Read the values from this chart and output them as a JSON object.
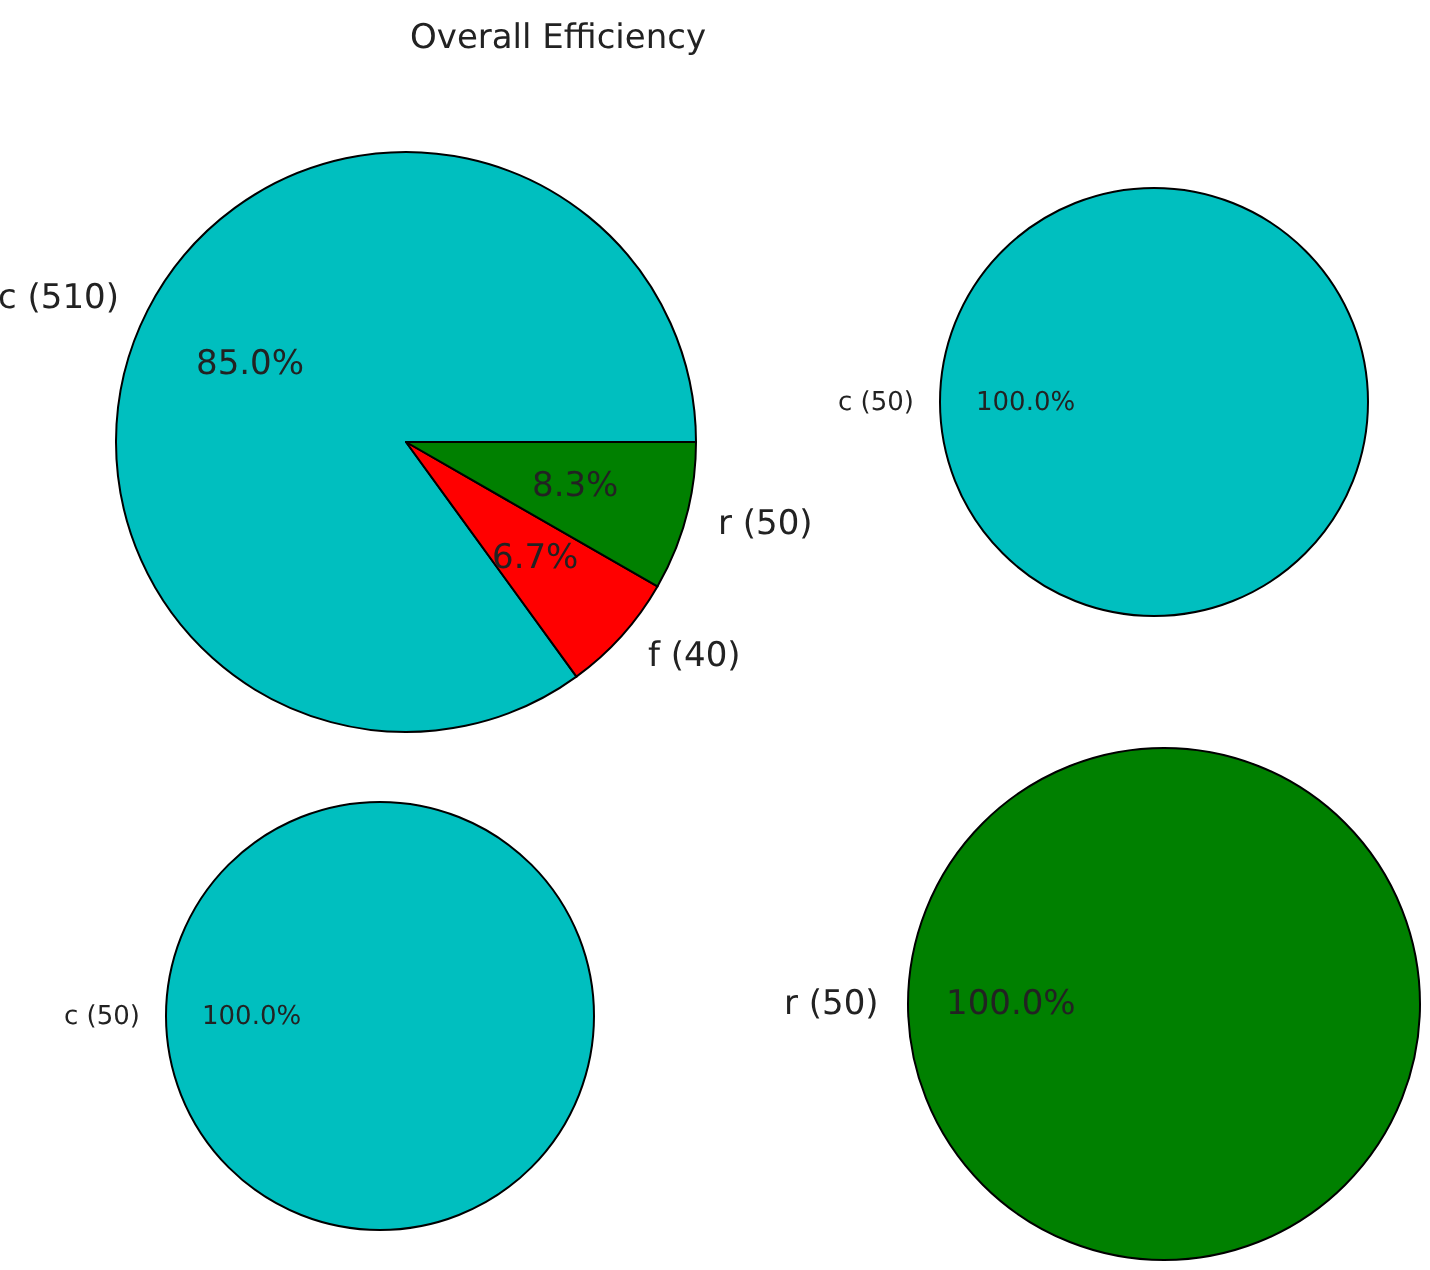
{
  "chart_data": [
    {
      "type": "pie",
      "title": "Overall Efficiency",
      "categories": [
        "c (510)",
        "f (40)",
        "r (50)"
      ],
      "values": [
        85.0,
        6.7,
        8.3
      ],
      "colors": [
        "#00bfbf",
        "#ff0000",
        "#008000"
      ],
      "value_labels": [
        "85.0%",
        "6.7%",
        "8.3%"
      ]
    },
    {
      "type": "pie",
      "categories": [
        "c (50)"
      ],
      "values": [
        100
      ],
      "colors": [
        "#00bfbf"
      ],
      "value_labels": [
        "100.0%"
      ]
    },
    {
      "type": "pie",
      "categories": [
        "r (50)"
      ],
      "values": [
        100
      ],
      "colors": [
        "#008000"
      ],
      "value_labels": [
        "100.0%"
      ]
    },
    {
      "type": "pie",
      "categories": [
        "c (50)"
      ],
      "values": [
        100
      ],
      "colors": [
        "#00bfbf"
      ],
      "value_labels": [
        "100.0%"
      ]
    }
  ]
}
